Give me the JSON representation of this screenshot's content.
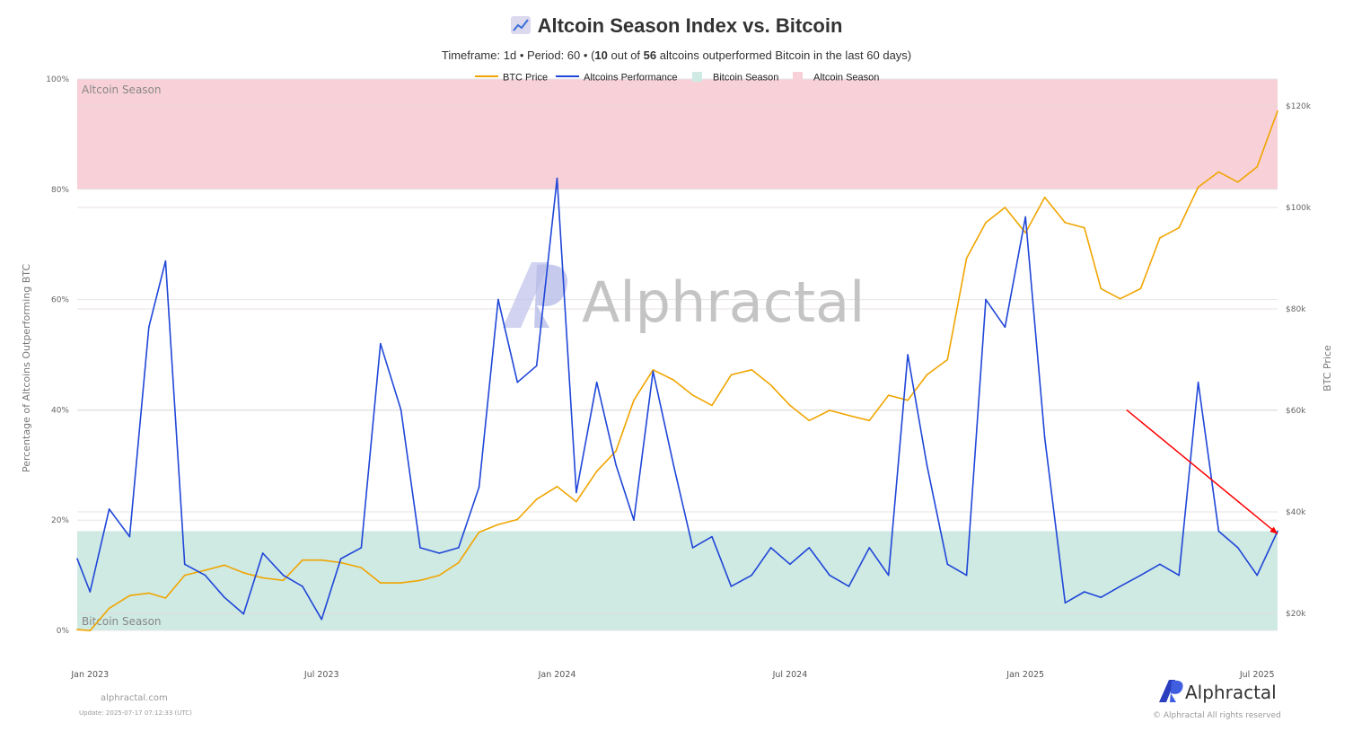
{
  "title": "Altcoin Season Index vs. Bitcoin",
  "title_icon": "chart-increasing-icon",
  "subtitle": {
    "timeframe": "Timeframe: 1d",
    "period": "Period: 60",
    "count": "10",
    "total": "56",
    "out_of": "out of",
    "tail": "altcoins outperformed Bitcoin in the last 60 days)",
    "open": "(",
    "sep": "•"
  },
  "watermark": "Alphractal",
  "footer": {
    "site": "alphractal.com",
    "update": "Update: 2025-07-17 07:12:33 (UTC)",
    "logo_text": "Alphractal",
    "copyright": "© Alphractal All rights reserved"
  },
  "chart_data": {
    "type": "line",
    "title": "Altcoin Season Index vs. Bitcoin",
    "ylabel": "Percentage of Altcoins Outperforming BTC",
    "y2label": "BTC Price",
    "ylim": [
      0,
      100
    ],
    "y2lim": [
      16600,
      125000
    ],
    "yticks": [
      "0%",
      "20%",
      "40%",
      "60%",
      "80%",
      "100%"
    ],
    "y2ticks": [
      {
        "value": 20000,
        "label": "$20k"
      },
      {
        "value": 40000,
        "label": "$40k"
      },
      {
        "value": 60000,
        "label": "$60k"
      },
      {
        "value": 80000,
        "label": "$80k"
      },
      {
        "value": 100000,
        "label": "$100k"
      },
      {
        "value": 120000,
        "label": "$120k"
      }
    ],
    "xlim": [
      "2022-12-22",
      "2025-07-17"
    ],
    "xticks": [
      {
        "date": "2023-01-01",
        "label": "Jan 2023"
      },
      {
        "date": "2023-07-01",
        "label": "Jul 2023"
      },
      {
        "date": "2024-01-01",
        "label": "Jan 2024"
      },
      {
        "date": "2024-07-01",
        "label": "Jul 2024"
      },
      {
        "date": "2025-01-01",
        "label": "Jan 2025"
      },
      {
        "date": "2025-07-01",
        "label": "Jul 2025"
      }
    ],
    "grid": true,
    "legend_position": "top-center",
    "colors": {
      "btc": "#f0a500",
      "alt": "#1f46d8",
      "bitcoin_season": "#cfe9e3",
      "altcoin_season": "#f8d0d8",
      "arrow": "#ff0000"
    },
    "bands": [
      {
        "name": "Bitcoin Season",
        "from": 0,
        "to": 18
      },
      {
        "name": "Altcoin Season",
        "from": 80,
        "to": 100
      }
    ],
    "x": [
      "2022-12-22",
      "2023-01-01",
      "2023-01-16",
      "2023-02-01",
      "2023-02-16",
      "2023-03-01",
      "2023-03-16",
      "2023-04-01",
      "2023-04-16",
      "2023-05-01",
      "2023-05-16",
      "2023-06-01",
      "2023-06-16",
      "2023-07-01",
      "2023-07-16",
      "2023-08-01",
      "2023-08-16",
      "2023-09-01",
      "2023-09-16",
      "2023-10-01",
      "2023-10-16",
      "2023-11-01",
      "2023-11-16",
      "2023-12-01",
      "2023-12-16",
      "2024-01-01",
      "2024-01-16",
      "2024-02-01",
      "2024-02-16",
      "2024-03-01",
      "2024-03-16",
      "2024-04-01",
      "2024-04-16",
      "2024-05-01",
      "2024-05-16",
      "2024-06-01",
      "2024-06-16",
      "2024-07-01",
      "2024-07-16",
      "2024-08-01",
      "2024-08-16",
      "2024-09-01",
      "2024-09-16",
      "2024-10-01",
      "2024-10-16",
      "2024-11-01",
      "2024-11-16",
      "2024-12-01",
      "2024-12-16",
      "2025-01-01",
      "2025-01-16",
      "2025-02-01",
      "2025-02-16",
      "2025-03-01",
      "2025-03-16",
      "2025-04-01",
      "2025-04-16",
      "2025-05-01",
      "2025-05-16",
      "2025-06-01",
      "2025-06-16",
      "2025-07-01",
      "2025-07-17"
    ],
    "series": [
      {
        "name": "BTC Price",
        "axis": "right",
        "values": [
          16800,
          16600,
          21000,
          23500,
          24000,
          23000,
          27500,
          28500,
          29500,
          28000,
          27000,
          26500,
          30500,
          30500,
          30000,
          29000,
          26000,
          26000,
          26500,
          27500,
          30000,
          36000,
          37500,
          38500,
          42500,
          45000,
          42000,
          48000,
          52000,
          62000,
          68000,
          66000,
          63000,
          61000,
          67000,
          68000,
          65000,
          61000,
          58000,
          60000,
          59000,
          58000,
          63000,
          62000,
          67000,
          70000,
          90000,
          97000,
          100000,
          95000,
          102000,
          97000,
          96000,
          84000,
          82000,
          84000,
          94000,
          96000,
          104000,
          107000,
          105000,
          108000,
          119000
        ]
      },
      {
        "name": "Altcoins Performance",
        "axis": "left",
        "values": [
          13,
          7,
          22,
          17,
          55,
          67,
          12,
          10,
          6,
          3,
          14,
          10,
          8,
          2,
          13,
          15,
          52,
          40,
          15,
          14,
          15,
          26,
          60,
          45,
          48,
          82,
          25,
          45,
          30,
          20,
          47,
          30,
          15,
          17,
          8,
          10,
          15,
          12,
          15,
          10,
          8,
          15,
          10,
          50,
          30,
          12,
          10,
          60,
          55,
          75,
          35,
          5,
          7,
          6,
          8,
          10,
          12,
          10,
          45,
          18,
          15,
          10,
          18
        ]
      }
    ],
    "annotations": [
      {
        "type": "arrow",
        "from": {
          "date": "2025-03-21",
          "value": 40
        },
        "to": {
          "date": "2025-07-17",
          "value": 17.5
        }
      }
    ],
    "legend": [
      {
        "label": "BTC Price",
        "kind": "line"
      },
      {
        "label": "Altcoins Performance",
        "kind": "line"
      },
      {
        "label": "Bitcoin Season",
        "kind": "box"
      },
      {
        "label": "Altcoin Season",
        "kind": "box"
      }
    ]
  }
}
